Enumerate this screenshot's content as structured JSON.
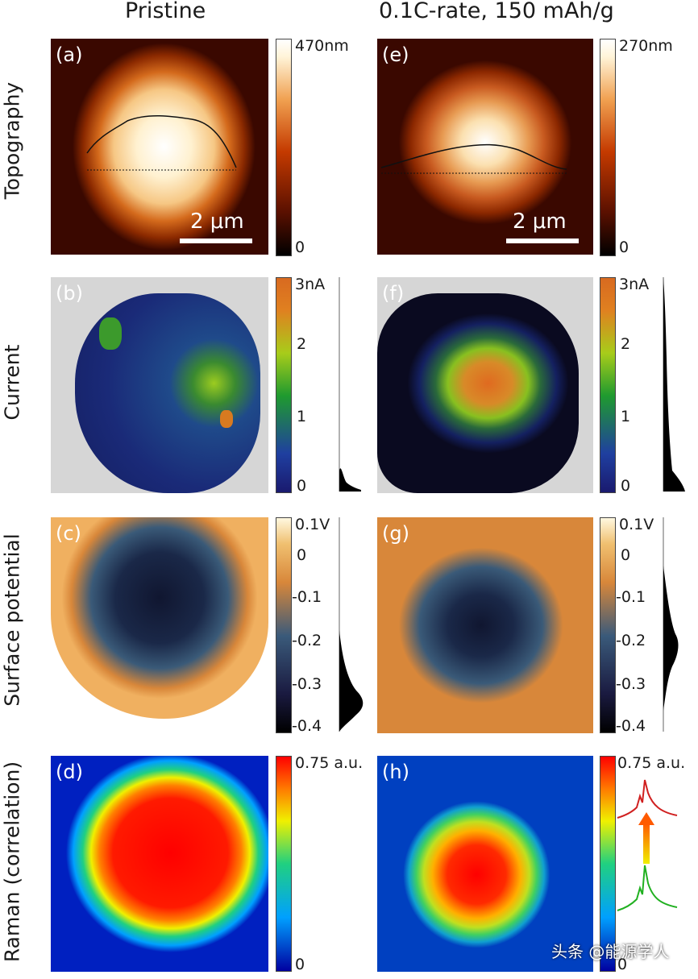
{
  "columns": [
    "Pristine",
    "0.1C-rate, 150 mAh/g"
  ],
  "rows": [
    "Topography",
    "Current",
    "Surface potential",
    "Raman (correlation)"
  ],
  "panels": {
    "a": "(a)",
    "b": "(b)",
    "c": "(c)",
    "d": "(d)",
    "e": "(e)",
    "f": "(f)",
    "g": "(g)",
    "h": "(h)"
  },
  "scale_bar": "2 μm",
  "colorbars": {
    "topo_left": {
      "max": "470nm",
      "min": "0"
    },
    "topo_right": {
      "max": "270nm",
      "min": "0"
    },
    "current": {
      "ticks": [
        "3nA",
        "2",
        "1",
        "0"
      ]
    },
    "potential": {
      "ticks": [
        "0.1V",
        "0",
        "-0.1",
        "-0.2",
        "-0.3",
        "-0.4"
      ]
    },
    "raman": {
      "max": "0.75 a.u.",
      "min": "0"
    }
  },
  "watermark": "头条 @能源学人",
  "colors": {
    "topo": [
      "#000000",
      "#5a1000",
      "#c43a00",
      "#f0a050",
      "#fff4d8",
      "#ffffff"
    ],
    "current": [
      "#1a1a6e",
      "#1f3fa0",
      "#1f9a2f",
      "#a8cc1a",
      "#e08020",
      "#d86a20"
    ],
    "potential": [
      "#000000",
      "#1a1a40",
      "#3a5a7a",
      "#d8873a",
      "#f0c070",
      "#fff8e0"
    ],
    "raman": [
      "#0000a0",
      "#00a0ff",
      "#20d080",
      "#f0f000",
      "#ff7a00",
      "#ff0000"
    ]
  }
}
